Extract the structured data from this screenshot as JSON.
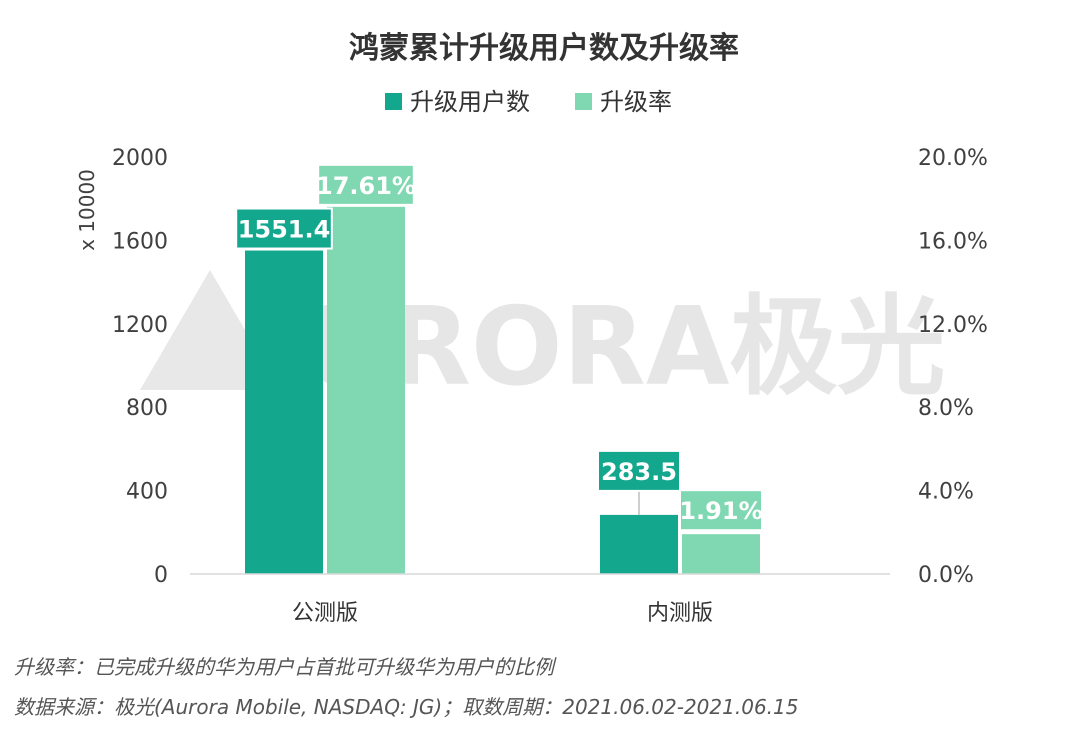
{
  "chart_data": {
    "type": "bar",
    "title": "鸿蒙累计升级用户数及升级率",
    "categories": [
      "公测版",
      "内测版"
    ],
    "series": [
      {
        "name": "升级用户数",
        "axis": "left",
        "values": [
          1551.4,
          283.5
        ],
        "labels": [
          "1551.4",
          "283.5"
        ],
        "color": "#13a88e"
      },
      {
        "name": "升级率",
        "axis": "right",
        "values": [
          17.61,
          1.91
        ],
        "labels": [
          "17.61%",
          "1.91%"
        ],
        "color": "#7fd8b1"
      }
    ],
    "ylabel": "x 10000",
    "ylim": [
      0,
      2000
    ],
    "y_ticks": [
      "0",
      "400",
      "800",
      "1200",
      "1600",
      "2000"
    ],
    "y2lim": [
      0,
      20
    ],
    "y2_ticks": [
      "0.0%",
      "4.0%",
      "8.0%",
      "12.0%",
      "16.0%",
      "20.0%"
    ],
    "legend_position": "top-center",
    "grid": false
  },
  "notes": [
    "升级率：已完成升级的华为用户占首批可升级华为用户的比例",
    "数据来源：极光(Aurora Mobile, NASDAQ: JG)；取数周期：2021.06.02-2021.06.15"
  ],
  "watermark": {
    "text": "URORA极光",
    "color": "#e6e6e6"
  }
}
